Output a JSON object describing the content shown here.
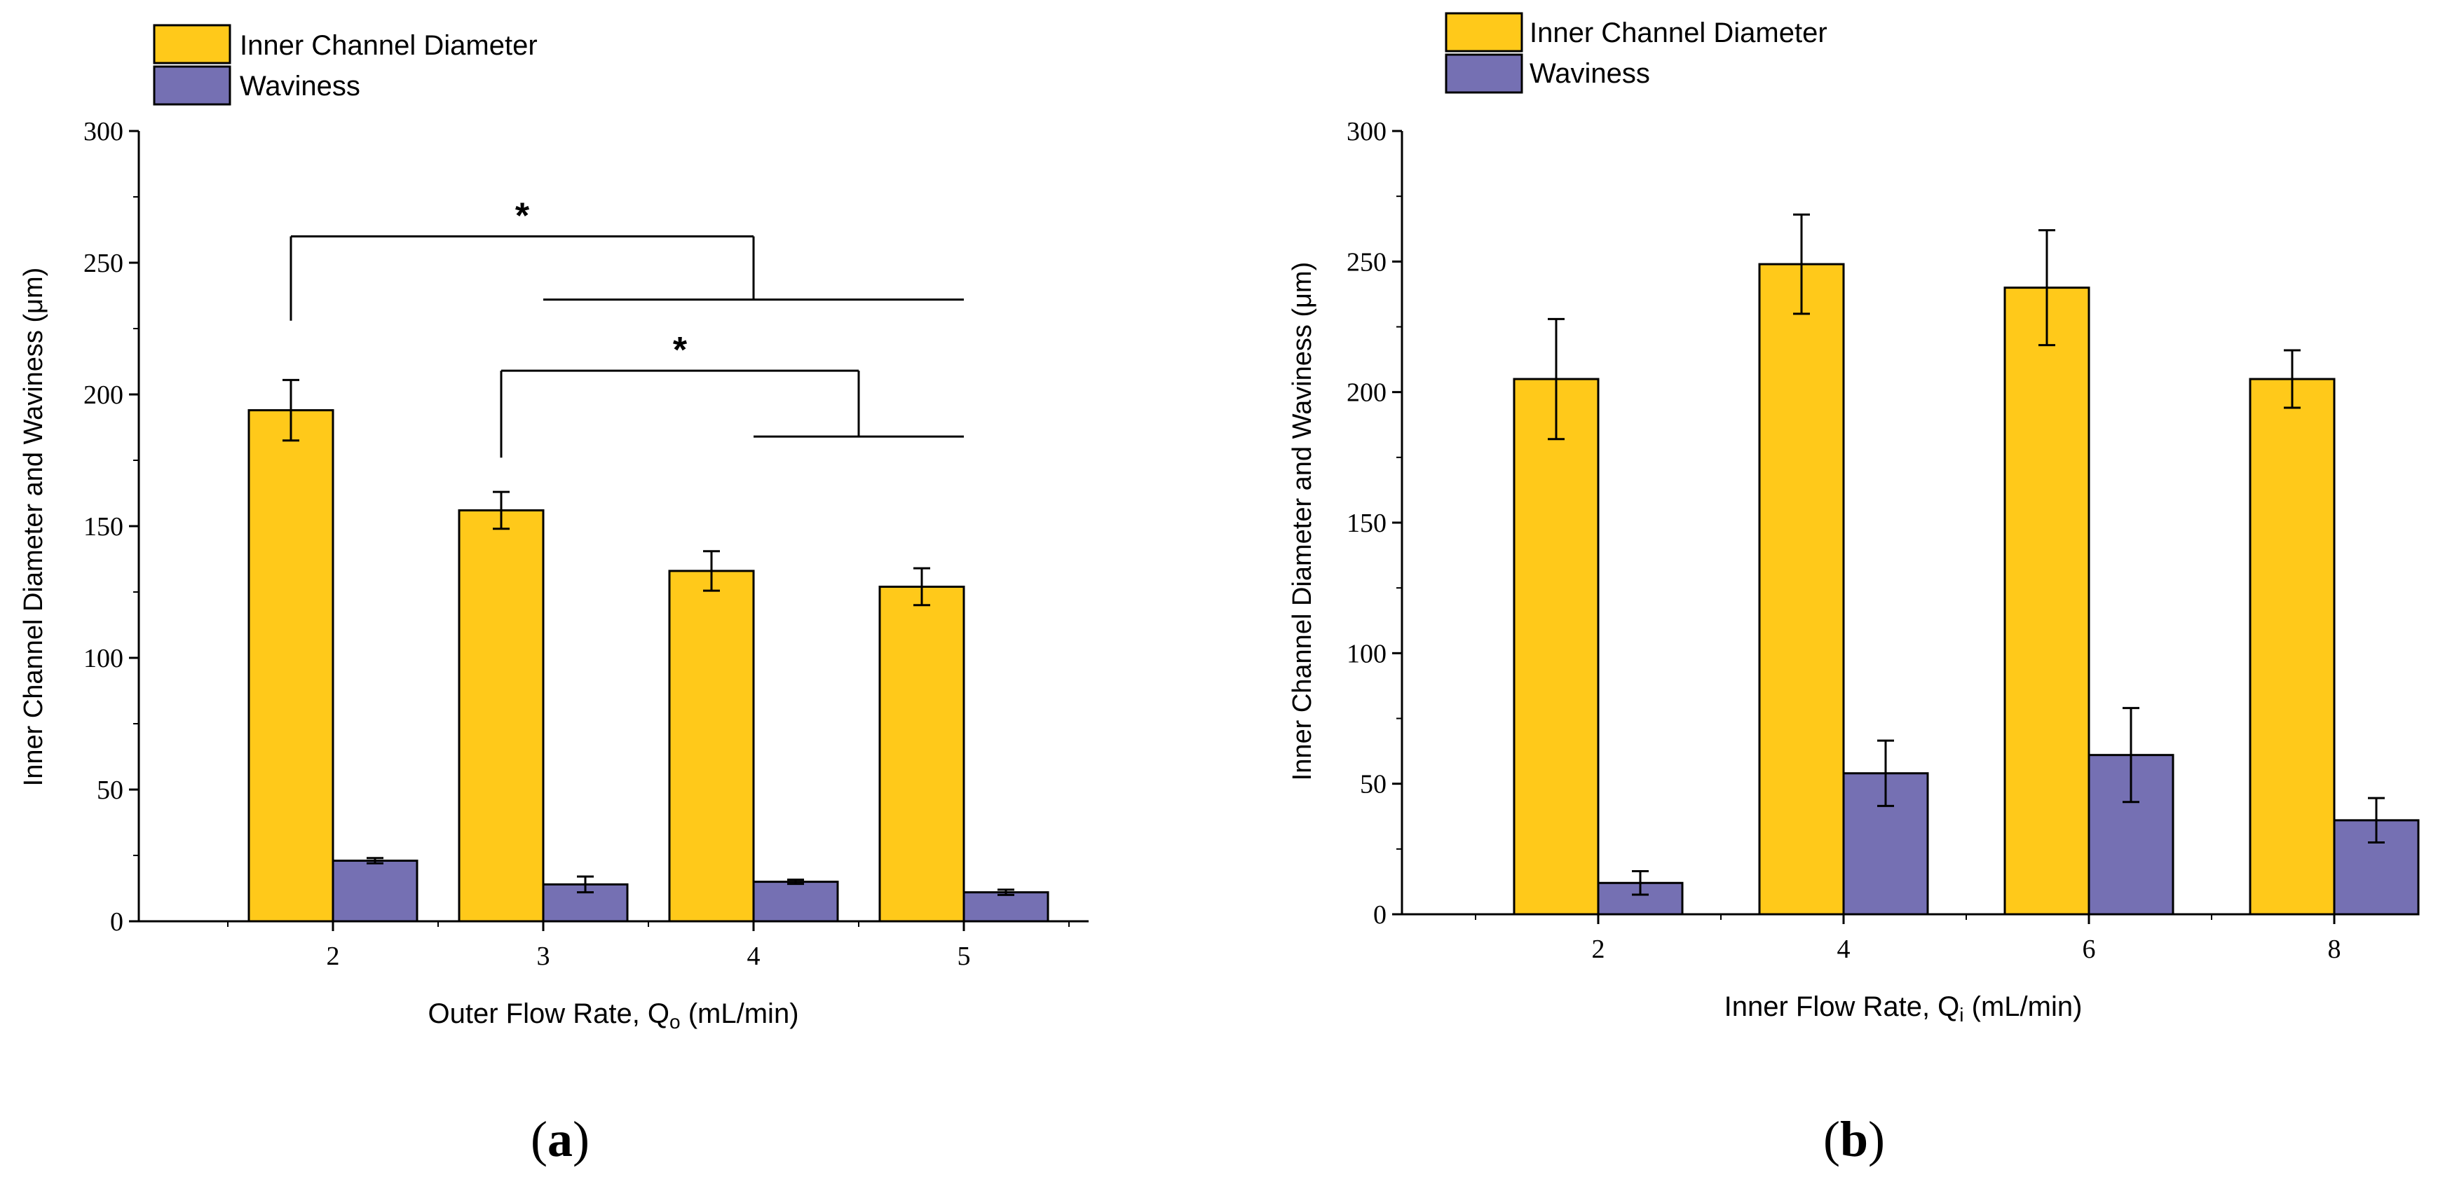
{
  "colors": {
    "inner": "#FFC91A",
    "waviness": "#7570B3",
    "stroke": "#000000"
  },
  "chart_data": [
    {
      "type": "bar",
      "panel_label": "a",
      "categories": [
        "2",
        "3",
        "4",
        "5"
      ],
      "series": [
        {
          "name": "Inner Channel Diameter",
          "values": [
            194,
            156,
            133,
            127
          ],
          "errors": [
            11.5,
            7,
            7.5,
            7
          ]
        },
        {
          "name": "Waviness",
          "values": [
            23,
            14,
            15,
            11
          ],
          "errors": [
            1,
            3,
            0.8,
            1
          ]
        }
      ],
      "xlabel_main": "Outer Flow Rate, Q",
      "xlabel_sub": "o",
      "xlabel_tail": " (mL/min)",
      "ylabel": "Inner Channel Diameter and Waviness (μm)",
      "ylim": [
        0,
        300
      ],
      "yticks": [
        "0",
        "50",
        "100",
        "150",
        "200",
        "250",
        "300"
      ],
      "legend": {
        "position": "top-left",
        "entries": [
          "Inner Channel Diameter",
          "Waviness"
        ]
      },
      "annotations": [
        {
          "label": "*",
          "from_category": 0,
          "to_categories": [
            1,
            3
          ],
          "bracket_value": 260,
          "span_value": 236,
          "left_stem_value": 228
        },
        {
          "label": "*",
          "from_category": 1,
          "to_categories": [
            2,
            3
          ],
          "bracket_value": 209,
          "span_value": 184,
          "left_stem_value": 176
        }
      ]
    },
    {
      "type": "bar",
      "panel_label": "b",
      "categories": [
        "2",
        "4",
        "6",
        "8"
      ],
      "series": [
        {
          "name": "Inner Channel Diameter",
          "values": [
            205,
            249,
            240,
            205
          ],
          "errors": [
            23,
            19,
            22,
            11
          ]
        },
        {
          "name": "Waviness",
          "values": [
            12,
            54,
            61,
            36
          ],
          "errors": [
            4.5,
            12.5,
            18,
            8.5
          ]
        }
      ],
      "xlabel_main": "Inner Flow Rate, Q",
      "xlabel_sub": "i",
      "xlabel_tail": " (mL/min)",
      "ylabel": "Inner Channel Diameter and Waviness (μm)",
      "ylim": [
        0,
        300
      ],
      "yticks": [
        "0",
        "50",
        "100",
        "150",
        "200",
        "250",
        "300"
      ],
      "legend": {
        "position": "top-left",
        "entries": [
          "Inner Channel Diameter",
          "Waviness"
        ]
      },
      "annotations": []
    }
  ]
}
